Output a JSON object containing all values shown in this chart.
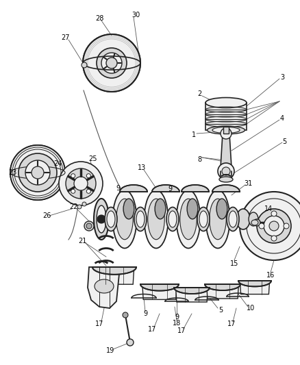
{
  "bg_color": "#ffffff",
  "fig_width": 4.38,
  "fig_height": 5.33,
  "dpi": 100,
  "line_color": "#555555",
  "dark_color": "#222222",
  "mid_color": "#555555",
  "light_fill": "#f0f0f0",
  "mid_fill": "#d8d8d8",
  "dark_fill": "#aaaaaa",
  "label_fontsize": 7.0,
  "leader_lw": 0.6
}
